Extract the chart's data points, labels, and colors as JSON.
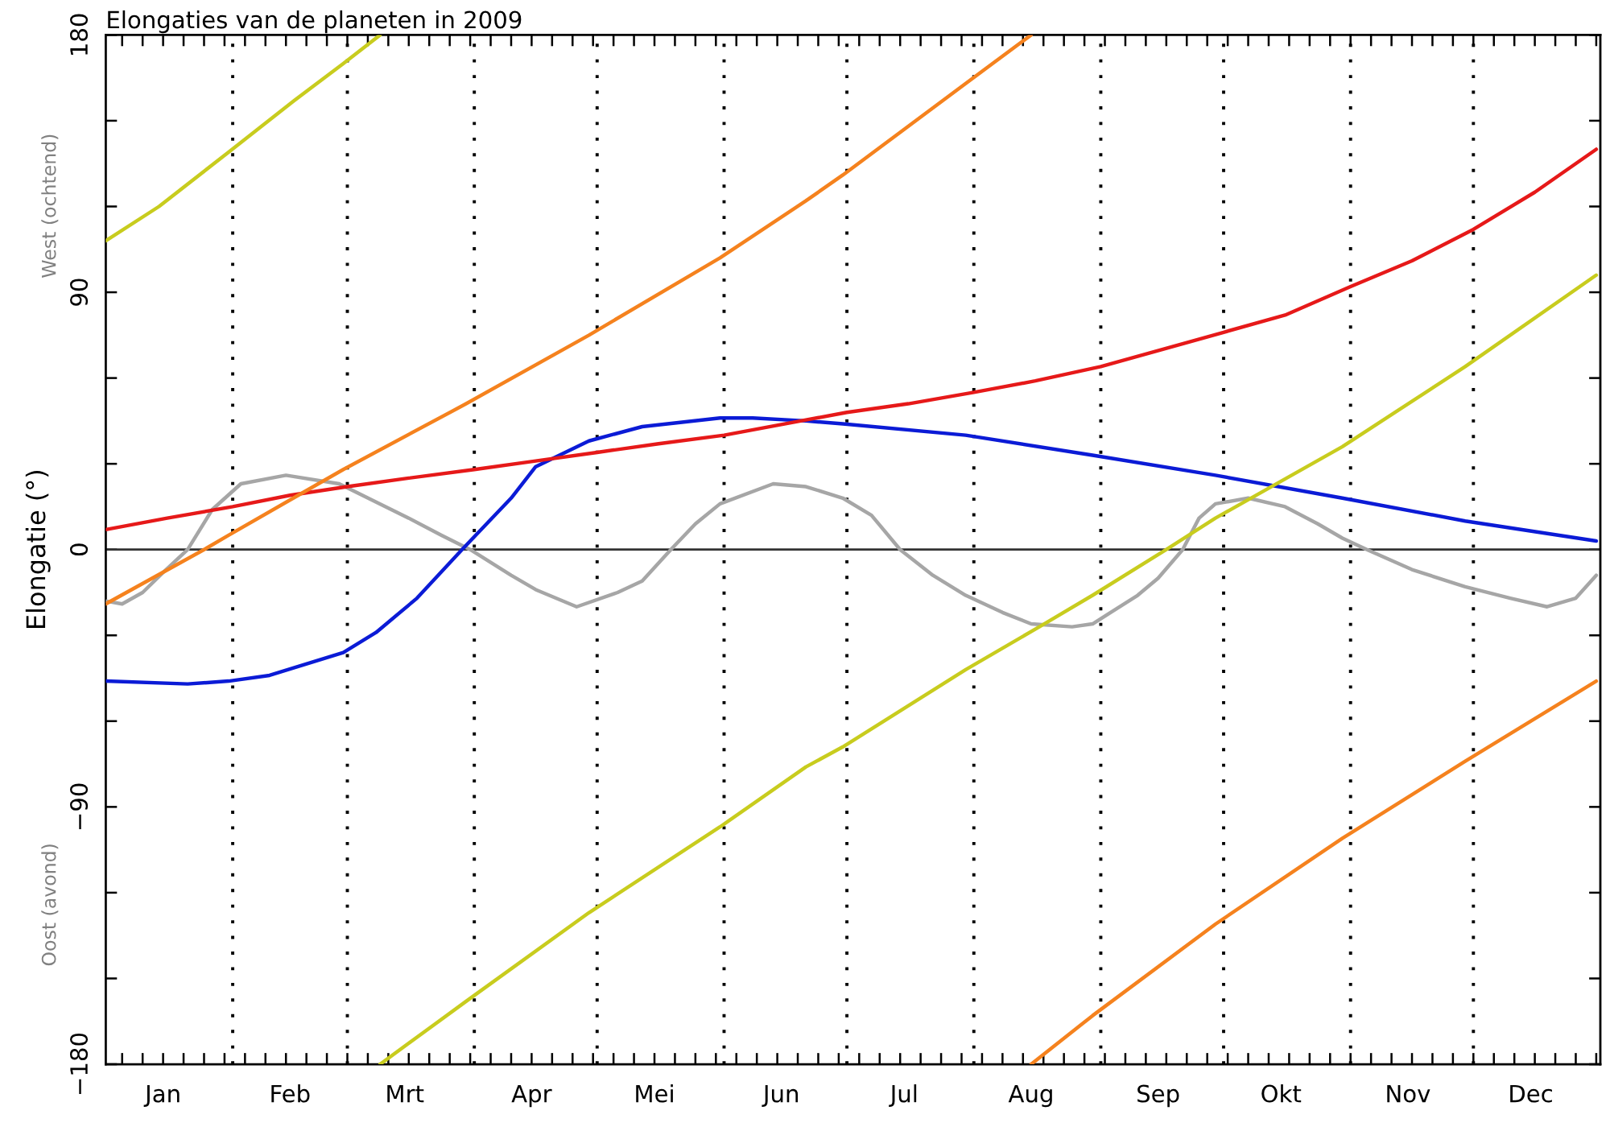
{
  "chart_data": {
    "type": "line",
    "title": "Elongaties van de planeten in 2009",
    "ylabel": "Elongatie (°)",
    "annotations": [
      "West (ochtend)",
      "Oost (avond)"
    ],
    "xlim": [
      "2009-01-01",
      "2010-01-01"
    ],
    "xticks": [
      {
        "value": "2009-01-05",
        "label": null
      },
      {
        "value": "2009-01-10",
        "label": null
      },
      {
        "value": "2009-01-15",
        "label": null
      },
      {
        "value": "2009-01-20",
        "label": null
      },
      {
        "value": "2009-01-25",
        "label": null
      },
      {
        "value": "2009-01-30",
        "label": null
      },
      {
        "value": "2009-02-04",
        "label": null
      },
      {
        "value": "2009-02-09",
        "label": null
      },
      {
        "value": "2009-02-14",
        "label": null
      },
      {
        "value": "2009-02-19",
        "label": null
      },
      {
        "value": "2009-02-24",
        "label": null
      },
      {
        "value": "2009-03-01",
        "label": null
      },
      {
        "value": "2009-03-06",
        "label": null
      },
      {
        "value": "2009-03-11",
        "label": null
      },
      {
        "value": "2009-03-16",
        "label": null
      },
      {
        "value": "2009-03-21",
        "label": null
      },
      {
        "value": "2009-03-26",
        "label": null
      },
      {
        "value": "2009-03-31",
        "label": null
      },
      {
        "value": "2009-04-05",
        "label": null
      },
      {
        "value": "2009-04-10",
        "label": null
      },
      {
        "value": "2009-04-15",
        "label": null
      },
      {
        "value": "2009-04-20",
        "label": null
      },
      {
        "value": "2009-04-25",
        "label": null
      },
      {
        "value": "2009-04-30",
        "label": null
      },
      {
        "value": "2009-05-05",
        "label": null
      },
      {
        "value": "2009-05-10",
        "label": null
      },
      {
        "value": "2009-05-15",
        "label": null
      },
      {
        "value": "2009-05-20",
        "label": null
      },
      {
        "value": "2009-05-25",
        "label": null
      },
      {
        "value": "2009-05-30",
        "label": null
      },
      {
        "value": "2009-06-04",
        "label": null
      },
      {
        "value": "2009-06-09",
        "label": null
      },
      {
        "value": "2009-06-14",
        "label": null
      },
      {
        "value": "2009-06-19",
        "label": null
      },
      {
        "value": "2009-06-24",
        "label": null
      },
      {
        "value": "2009-06-29",
        "label": null
      },
      {
        "value": "2009-07-04",
        "label": null
      },
      {
        "value": "2009-07-09",
        "label": null
      },
      {
        "value": "2009-07-14",
        "label": null
      },
      {
        "value": "2009-07-19",
        "label": null
      },
      {
        "value": "2009-07-24",
        "label": null
      },
      {
        "value": "2009-07-29",
        "label": null
      },
      {
        "value": "2009-08-03",
        "label": null
      },
      {
        "value": "2009-08-08",
        "label": null
      },
      {
        "value": "2009-08-13",
        "label": null
      },
      {
        "value": "2009-08-18",
        "label": null
      },
      {
        "value": "2009-08-23",
        "label": null
      },
      {
        "value": "2009-08-28",
        "label": null
      },
      {
        "value": "2009-09-02",
        "label": null
      },
      {
        "value": "2009-09-07",
        "label": null
      },
      {
        "value": "2009-09-12",
        "label": null
      },
      {
        "value": "2009-09-17",
        "label": null
      },
      {
        "value": "2009-09-22",
        "label": null
      },
      {
        "value": "2009-09-27",
        "label": null
      },
      {
        "value": "2009-10-02",
        "label": null
      },
      {
        "value": "2009-10-07",
        "label": null
      },
      {
        "value": "2009-10-12",
        "label": null
      },
      {
        "value": "2009-10-17",
        "label": null
      },
      {
        "value": "2009-10-22",
        "label": null
      },
      {
        "value": "2009-10-27",
        "label": null
      },
      {
        "value": "2009-11-01",
        "label": null
      },
      {
        "value": "2009-11-06",
        "label": null
      },
      {
        "value": "2009-11-11",
        "label": null
      },
      {
        "value": "2009-11-16",
        "label": null
      },
      {
        "value": "2009-11-21",
        "label": null
      },
      {
        "value": "2009-11-26",
        "label": null
      },
      {
        "value": "2009-12-01",
        "label": null
      },
      {
        "value": "2009-12-06",
        "label": null
      },
      {
        "value": "2009-12-11",
        "label": null
      },
      {
        "value": "2009-12-16",
        "label": null
      },
      {
        "value": "2009-12-21",
        "label": null
      },
      {
        "value": "2009-12-26",
        "label": null
      },
      {
        "value": "2009-12-31",
        "label": null
      },
      {
        "value": "2009-01-15",
        "label": "Jan"
      },
      {
        "value": "2009-02-15",
        "label": "Feb"
      },
      {
        "value": "2009-03-15",
        "label": "Mrt"
      },
      {
        "value": "2009-04-15",
        "label": "Apr"
      },
      {
        "value": "2009-05-15",
        "label": "Mei"
      },
      {
        "value": "2009-06-15",
        "label": "Jun"
      },
      {
        "value": "2009-07-15",
        "label": "Jul"
      },
      {
        "value": "2009-08-15",
        "label": "Aug"
      },
      {
        "value": "2009-09-15",
        "label": "Sep"
      },
      {
        "value": "2009-10-15",
        "label": "Okt"
      },
      {
        "value": "2009-11-15",
        "label": "Nov"
      },
      {
        "value": "2009-12-15",
        "label": "Dec"
      }
    ],
    "ylim": [
      -180,
      180
    ],
    "yticks": [
      {
        "value": -180,
        "label": "−180"
      },
      {
        "value": -150,
        "label": null
      },
      {
        "value": -120,
        "label": null
      },
      {
        "value": -90,
        "label": "−90"
      },
      {
        "value": -60,
        "label": null
      },
      {
        "value": -30,
        "label": null
      },
      0,
      {
        "value": 30,
        "label": null
      },
      {
        "value": 60,
        "label": null
      },
      90,
      {
        "value": 120,
        "label": null
      },
      {
        "value": 150,
        "label": null
      },
      180
    ],
    "ref_lines": [
      {
        "axis": "y",
        "value": 0,
        "color": "#333333",
        "line_style": "solid"
      },
      {
        "axis": "x",
        "value": "2009-02-01",
        "color": "#000000",
        "line_style": "dotted"
      },
      {
        "axis": "x",
        "value": "2009-03-01",
        "color": "#000000",
        "line_style": "dotted"
      },
      {
        "axis": "x",
        "value": "2009-04-01",
        "color": "#000000",
        "line_style": "dotted"
      },
      {
        "axis": "x",
        "value": "2009-05-01",
        "color": "#000000",
        "line_style": "dotted"
      },
      {
        "axis": "x",
        "value": "2009-06-01",
        "color": "#000000",
        "line_style": "dotted"
      },
      {
        "axis": "x",
        "value": "2009-07-01",
        "color": "#000000",
        "line_style": "dotted"
      },
      {
        "axis": "x",
        "value": "2009-08-01",
        "color": "#000000",
        "line_style": "dotted"
      },
      {
        "axis": "x",
        "value": "2009-09-01",
        "color": "#000000",
        "line_style": "dotted"
      },
      {
        "axis": "x",
        "value": "2009-10-01",
        "color": "#000000",
        "line_style": "dotted"
      },
      {
        "axis": "x",
        "value": "2009-11-01",
        "color": "#000000",
        "line_style": "dotted"
      },
      {
        "axis": "x",
        "value": "2009-12-01",
        "color": "#000000",
        "line_style": "dotted"
      }
    ],
    "series": [
      {
        "color": "#a6a6a6",
        "x": [
          "2009-01-01",
          "2009-01-05",
          "2009-01-10",
          "2009-01-15",
          "2009-01-21",
          "2009-01-27",
          "2009-02-03",
          "2009-02-14",
          "2009-02-27",
          "2009-03-16",
          "2009-03-24",
          "2009-03-31",
          "2009-04-10",
          "2009-04-16",
          "2009-04-26",
          "2009-05-06",
          "2009-05-12",
          "2009-05-19",
          "2009-05-25",
          "2009-05-31",
          "2009-06-13",
          "2009-06-21",
          "2009-06-30",
          "2009-07-07",
          "2009-07-14",
          "2009-07-22",
          "2009-07-30",
          "2009-08-08",
          "2009-08-15",
          "2009-08-25",
          "2009-08-30",
          "2009-09-10",
          "2009-09-15",
          "2009-09-21",
          "2009-09-25",
          "2009-09-29",
          "2009-10-07",
          "2009-10-16",
          "2009-10-24",
          "2009-10-30",
          "2009-11-05",
          "2009-11-16",
          "2009-11-29",
          "2009-12-10",
          "2009-12-19",
          "2009-12-26",
          "2009-12-31"
        ],
        "values": [
          -18,
          -19,
          -15,
          -8,
          0,
          14,
          23,
          26,
          23,
          11,
          5,
          0,
          -9,
          -14,
          -20,
          -15,
          -11,
          0,
          9,
          16,
          23,
          22,
          18,
          12,
          0,
          -9,
          -16,
          -22,
          -26,
          -27,
          -26,
          -16,
          -10,
          0,
          11,
          16,
          18,
          15,
          9,
          4,
          0,
          -7,
          -13,
          -17,
          -20,
          -17,
          -9
        ]
      },
      {
        "color": "#0b1bd6",
        "x": [
          "2009-01-01",
          "2009-01-21",
          "2009-01-31",
          "2009-02-10",
          "2009-02-28",
          "2009-03-08",
          "2009-03-18",
          "2009-03-29",
          "2009-04-10",
          "2009-04-16",
          "2009-04-29",
          "2009-05-12",
          "2009-05-31",
          "2009-06-08",
          "2009-06-21",
          "2009-06-30",
          "2009-07-30",
          "2009-08-30",
          "2009-09-29",
          "2009-10-30",
          "2009-11-29",
          "2009-12-31"
        ],
        "values": [
          -46,
          -47,
          -46,
          -44,
          -36,
          -29,
          -17,
          0,
          18,
          29,
          38,
          43,
          46,
          46,
          45,
          44,
          40,
          33,
          26,
          18,
          10,
          3
        ]
      },
      {
        "color": "#e61919",
        "x": [
          "2009-01-01",
          "2009-01-16",
          "2009-02-01",
          "2009-02-15",
          "2009-03-01",
          "2009-03-16",
          "2009-04-01",
          "2009-04-16",
          "2009-05-01",
          "2009-05-16",
          "2009-06-01",
          "2009-06-16",
          "2009-07-01",
          "2009-07-16",
          "2009-08-01",
          "2009-08-16",
          "2009-09-01",
          "2009-09-16",
          "2009-10-01",
          "2009-10-16",
          "2009-11-01",
          "2009-11-16",
          "2009-12-01",
          "2009-12-16",
          "2009-12-31"
        ],
        "values": [
          7,
          11,
          15,
          19,
          22,
          25,
          28,
          31,
          34,
          37,
          40,
          44,
          48,
          51,
          55,
          59,
          64,
          70,
          76,
          82,
          92,
          101,
          112,
          125,
          140
        ]
      },
      {
        "color": "#f5821e",
        "x": [
          "2009-01-01",
          "2009-01-25",
          "2009-01-31",
          "2009-02-17",
          "2009-02-28",
          "2009-03-30",
          "2009-04-29",
          "2009-05-31",
          "2009-06-21",
          "2009-06-30",
          "2009-07-30",
          "2009-08-15"
        ],
        "values": [
          -19,
          0,
          5,
          19,
          28,
          51,
          75,
          102,
          122,
          131,
          163,
          180
        ]
      },
      {
        "color": "#f5821e",
        "x": [
          "2009-08-15",
          "2009-08-30",
          "2009-09-29",
          "2009-10-30",
          "2009-11-29",
          "2009-12-31"
        ],
        "values": [
          -180,
          -163,
          -131,
          -101,
          -74,
          -46
        ]
      },
      {
        "color": "#c8cc1e",
        "x": [
          "2009-01-01",
          "2009-01-14",
          "2009-01-31",
          "2009-02-16",
          "2009-02-28",
          "2009-03-09"
        ],
        "values": [
          108,
          120,
          139,
          157,
          170,
          180
        ]
      },
      {
        "color": "#c8cc1e",
        "x": [
          "2009-03-09",
          "2009-03-30",
          "2009-04-29",
          "2009-05-31",
          "2009-06-21",
          "2009-06-30",
          "2009-07-30",
          "2009-08-17",
          "2009-08-30",
          "2009-09-17",
          "2009-09-29",
          "2009-10-30",
          "2009-11-29",
          "2009-12-31"
        ],
        "values": [
          -180,
          -158,
          -127,
          -97,
          -76,
          -69,
          -42,
          -27,
          -16,
          0,
          11,
          36,
          64,
          96
        ]
      }
    ]
  }
}
